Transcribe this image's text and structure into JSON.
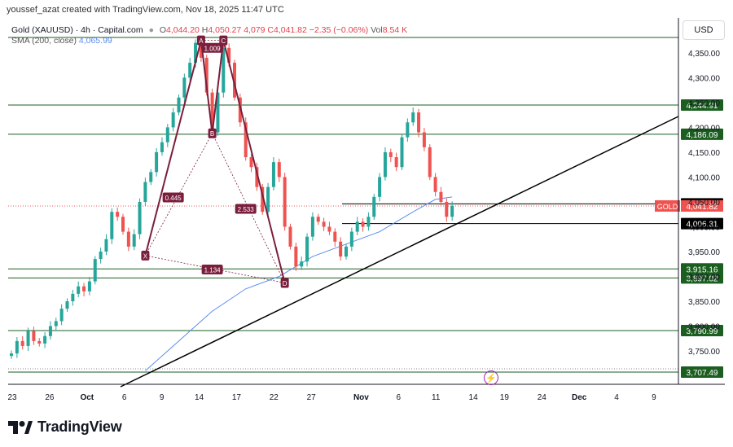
{
  "header": {
    "creator": "youssef_azat created with TradingView.com, Nov 18, 2025 11:47 UTC",
    "symbol": "Gold (XAUUSD) · 4h · Capital.com",
    "ohlc": {
      "open_label": "O",
      "open": "4,044.20",
      "high_label": "H",
      "high": "4,050.27",
      "low_label": "L",
      "low": "4,0",
      "close_label": "C",
      "close": "79",
      "close_value": "C4,041.82",
      "change": "−2.35 (−0.06%)",
      "vol_label": "Vol",
      "vol": "8.54 K"
    },
    "sma_label": "SMA (200, close)",
    "sma_value": "4,065.99",
    "currency": "USD"
  },
  "colors": {
    "up": "#26a69a",
    "down": "#ef5350",
    "level_line": "#1b5e20",
    "harmonic": "#7b1e3c",
    "sma": "#5b8def",
    "trendline": "#000000"
  },
  "chart_data": {
    "type": "candlestick",
    "title": "Gold (XAUUSD) · 4h · Capital.com",
    "ylim": [
      3700,
      4380
    ],
    "y_ticks": [
      "4,350.00",
      "4,300.00",
      "4,250.00",
      "4,200.00",
      "4,150.00",
      "4,100.00",
      "4,050.00",
      "4,000.00",
      "3,950.00",
      "3,900.00",
      "3,850.00",
      "3,800.00",
      "3,750.00"
    ],
    "y_tick_values": [
      4350,
      4300,
      4250,
      4200,
      4150,
      4100,
      4050,
      4000,
      3950,
      3900,
      3850,
      3800,
      3750
    ],
    "x_ticks": [
      "23",
      "26",
      "Oct",
      "6",
      "9",
      "14",
      "17",
      "22",
      "27",
      "Nov",
      "6",
      "11",
      "14",
      "19",
      "24",
      "Dec",
      "4",
      "9"
    ],
    "x_tick_index": [
      0,
      6,
      12,
      18,
      24,
      30,
      36,
      42,
      48,
      56,
      62,
      68,
      74,
      79,
      85,
      91,
      97,
      103
    ],
    "candles_count": 80,
    "close_path": [
      3745,
      3770,
      3760,
      3790,
      3770,
      3765,
      3780,
      3800,
      3810,
      3835,
      3850,
      3865,
      3880,
      3870,
      3890,
      3935,
      3950,
      3975,
      4030,
      4020,
      3990,
      3960,
      3985,
      4050,
      4090,
      4110,
      4150,
      4170,
      4200,
      4230,
      4260,
      4300,
      4330,
      4370,
      4340,
      4270,
      4190,
      4270,
      4360,
      4330,
      4260,
      4210,
      4140,
      4120,
      4080,
      4030,
      4080,
      4130,
      4100,
      4000,
      3960,
      3920,
      3930,
      3980,
      4020,
      4010,
      4000,
      3990,
      3970,
      3940,
      3960,
      3990,
      4010,
      4000,
      4020,
      4060,
      4100,
      4150,
      4140,
      4120,
      4180,
      4210,
      4230,
      4190,
      4160,
      4100,
      4070,
      4050,
      4020,
      4042
    ],
    "horizontal_levels": [
      {
        "label": "4,244.91",
        "value": 4244.91
      },
      {
        "label": "4,186.09",
        "value": 4186.09
      },
      {
        "label": "4,045.98",
        "value": 4045.98
      },
      {
        "label": "4,006.31",
        "value": 4006.31
      },
      {
        "label": "3,915.16",
        "value": 3915.16
      },
      {
        "label": "3,897.02",
        "value": 3897.02
      },
      {
        "label": "3,790.99",
        "value": 3790.99
      },
      {
        "label": "3,707.49",
        "value": 3707.49
      }
    ],
    "top_level": 4380,
    "current_label": "GOLD",
    "current_price": "4,041.82",
    "current_value": 4041.82,
    "harmonic": {
      "points": [
        {
          "label": "X",
          "i": 24,
          "v": 3942
        },
        {
          "label": "A",
          "i": 34,
          "v": 4375
        },
        {
          "label": "B",
          "i": 36,
          "v": 4188
        },
        {
          "label": "C",
          "i": 38,
          "v": 4375
        },
        {
          "label": "D",
          "i": 49,
          "v": 3887
        }
      ],
      "ratios": [
        {
          "label": "1.009",
          "i": 36,
          "v": 4360
        },
        {
          "label": "0.445",
          "i": 29,
          "v": 4059
        },
        {
          "label": "2.533",
          "i": 42,
          "v": 4036
        },
        {
          "label": "1.134",
          "i": 36,
          "v": 3914
        }
      ]
    },
    "trendline": {
      "i1": 17,
      "v1": 3702,
      "i2": 104,
      "v2": 4234
    },
    "sma_path": [
      [
        24,
        3710
      ],
      [
        30,
        3770
      ],
      [
        36,
        3830
      ],
      [
        42,
        3875
      ],
      [
        48,
        3900
      ],
      [
        54,
        3940
      ],
      [
        60,
        3965
      ],
      [
        66,
        3990
      ],
      [
        72,
        4030
      ],
      [
        76,
        4055
      ],
      [
        79,
        4060
      ]
    ]
  }
}
